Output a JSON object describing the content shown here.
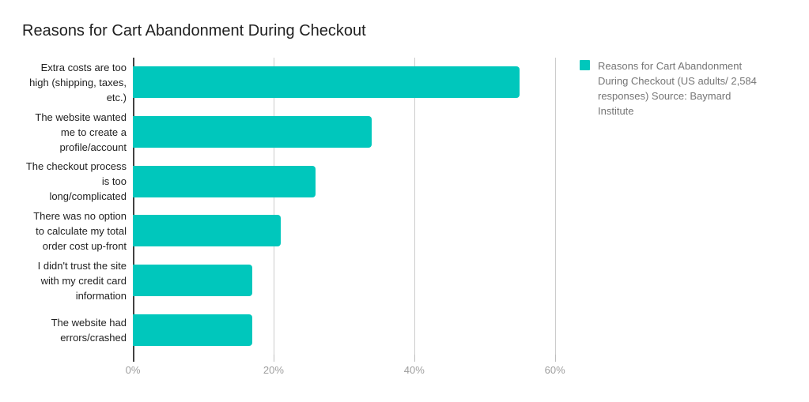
{
  "colors": {
    "background": "#ffffff",
    "bar": "#00C7BC",
    "title_text": "#212121",
    "category_text": "#212121",
    "axis_label_text": "#9e9e9e",
    "legend_text": "#757575",
    "gridline": "#cccccc",
    "axis_line": "#424242",
    "tick": "#bdbdbd"
  },
  "chart_data": {
    "type": "bar",
    "orientation": "horizontal",
    "title": "Reasons for Cart Abandonment During Checkout",
    "categories": [
      "Extra costs are too high (shipping, taxes, etc.)",
      "The website wanted me to create a profile/account",
      "The checkout process is too long/complicated",
      "There was no option to calculate my total order cost up-front",
      "I didn't trust the site with my credit card information",
      "The website had errors/crashed"
    ],
    "values": [
      55,
      34,
      26,
      21,
      17,
      17
    ],
    "value_unit": "%",
    "xlabel": "",
    "ylabel": "",
    "xlim": [
      0,
      61.5
    ],
    "x_ticks": [
      {
        "value": 0,
        "label": "0%"
      },
      {
        "value": 20,
        "label": "20%"
      },
      {
        "value": 40,
        "label": "40%"
      },
      {
        "value": 60,
        "label": "60%"
      }
    ],
    "grid": true,
    "bar_color": "#00C7BC",
    "legend": {
      "position": "right",
      "entries": [
        {
          "label": "Reasons for Cart Abandonment During Checkout (US adults/ 2,584 responses) Source: Baymard Institute",
          "color": "#00C7BC"
        }
      ]
    }
  }
}
